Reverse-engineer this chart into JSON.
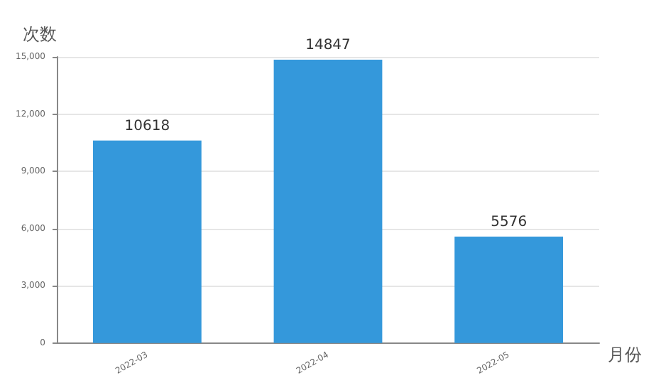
{
  "chart_data": {
    "type": "bar",
    "xlabel": "月份",
    "ylabel": "次数",
    "categories": [
      "2022-03",
      "2022-04",
      "2022-05"
    ],
    "values": [
      10618,
      14847,
      5576
    ],
    "color": "#3498db",
    "ylim": [
      0,
      15000
    ],
    "yticks": [
      {
        "value": 0,
        "label": "0"
      },
      {
        "value": 3000,
        "label": "3,000"
      },
      {
        "value": 6000,
        "label": "6,000"
      },
      {
        "value": 9000,
        "label": "9,000"
      },
      {
        "value": 12000,
        "label": "12,000"
      },
      {
        "value": 15000,
        "label": "15,000"
      }
    ],
    "grid": "y",
    "data_labels": true
  }
}
